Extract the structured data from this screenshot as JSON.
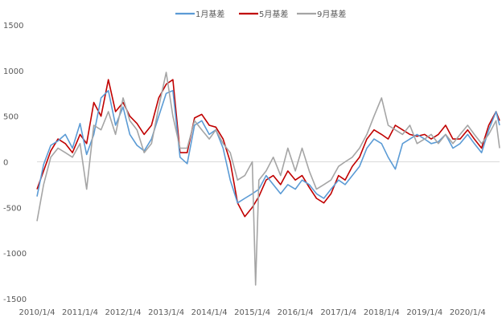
{
  "chart_data": {
    "type": "line",
    "title": "",
    "xlabel": "",
    "ylabel": "",
    "ylim": [
      -1500,
      1500
    ],
    "y_ticks": [
      1500,
      1000,
      500,
      0,
      -500,
      -1000,
      -1500
    ],
    "x_tick_labels": [
      "2010/1/4",
      "2011/1/4",
      "2012/1/4",
      "2013/1/4",
      "2014/1/4",
      "2015/1/4",
      "2016/1/4",
      "2017/1/4",
      "2018/1/4",
      "2019/1/4",
      "2020/1/4"
    ],
    "x_range": [
      "2010/1/4",
      "2020/10/1"
    ],
    "grid": false,
    "legend_position": "top",
    "series": [
      {
        "name": "1月基差",
        "color": "#5b9bd5",
        "points": [
          [
            "2010/1/4",
            -380
          ],
          [
            "2010/3/1",
            -30
          ],
          [
            "2010/5/1",
            180
          ],
          [
            "2010/7/1",
            230
          ],
          [
            "2010/9/1",
            300
          ],
          [
            "2010/11/1",
            150
          ],
          [
            "2011/1/4",
            420
          ],
          [
            "2011/3/1",
            80
          ],
          [
            "2011/5/1",
            300
          ],
          [
            "2011/7/1",
            700
          ],
          [
            "2011/9/1",
            780
          ],
          [
            "2011/11/1",
            400
          ],
          [
            "2012/1/4",
            600
          ],
          [
            "2012/3/1",
            300
          ],
          [
            "2012/5/1",
            180
          ],
          [
            "2012/7/1",
            120
          ],
          [
            "2012/9/1",
            250
          ],
          [
            "2012/11/1",
            500
          ],
          [
            "2013/1/4",
            750
          ],
          [
            "2013/3/1",
            780
          ],
          [
            "2013/5/1",
            50
          ],
          [
            "2013/7/1",
            -20
          ],
          [
            "2013/9/1",
            400
          ],
          [
            "2013/11/1",
            450
          ],
          [
            "2014/1/4",
            300
          ],
          [
            "2014/3/1",
            350
          ],
          [
            "2014/5/1",
            150
          ],
          [
            "2014/7/1",
            -200
          ],
          [
            "2014/9/1",
            -450
          ],
          [
            "2014/11/1",
            -400
          ],
          [
            "2015/1/4",
            -350
          ],
          [
            "2015/3/1",
            -300
          ],
          [
            "2015/5/1",
            -150
          ],
          [
            "2015/7/1",
            -250
          ],
          [
            "2015/9/1",
            -350
          ],
          [
            "2015/11/1",
            -250
          ],
          [
            "2016/1/4",
            -300
          ],
          [
            "2016/3/1",
            -200
          ],
          [
            "2016/5/1",
            -250
          ],
          [
            "2016/7/1",
            -350
          ],
          [
            "2016/9/1",
            -400
          ],
          [
            "2016/11/1",
            -300
          ],
          [
            "2017/1/4",
            -200
          ],
          [
            "2017/3/1",
            -250
          ],
          [
            "2017/5/1",
            -150
          ],
          [
            "2017/7/1",
            -50
          ],
          [
            "2017/9/1",
            150
          ],
          [
            "2017/11/1",
            250
          ],
          [
            "2018/1/4",
            200
          ],
          [
            "2018/3/1",
            50
          ],
          [
            "2018/5/1",
            -80
          ],
          [
            "2018/7/1",
            200
          ],
          [
            "2018/9/1",
            250
          ],
          [
            "2018/11/1",
            300
          ],
          [
            "2019/1/4",
            250
          ],
          [
            "2019/3/1",
            200
          ],
          [
            "2019/5/1",
            220
          ],
          [
            "2019/7/1",
            300
          ],
          [
            "2019/9/1",
            150
          ],
          [
            "2019/11/1",
            200
          ],
          [
            "2020/1/4",
            300
          ],
          [
            "2020/3/1",
            200
          ],
          [
            "2020/5/1",
            100
          ],
          [
            "2020/7/1",
            350
          ],
          [
            "2020/9/1",
            550
          ],
          [
            "2020/10/1",
            400
          ]
        ]
      },
      {
        "name": "5月基差",
        "color": "#c00000",
        "points": [
          [
            "2010/1/4",
            -300
          ],
          [
            "2010/3/1",
            -100
          ],
          [
            "2010/5/1",
            120
          ],
          [
            "2010/7/1",
            250
          ],
          [
            "2010/9/1",
            200
          ],
          [
            "2010/11/1",
            100
          ],
          [
            "2011/1/4",
            300
          ],
          [
            "2011/3/1",
            200
          ],
          [
            "2011/5/1",
            650
          ],
          [
            "2011/7/1",
            500
          ],
          [
            "2011/9/1",
            900
          ],
          [
            "2011/11/1",
            550
          ],
          [
            "2012/1/4",
            650
          ],
          [
            "2012/3/1",
            500
          ],
          [
            "2012/5/1",
            420
          ],
          [
            "2012/7/1",
            300
          ],
          [
            "2012/9/1",
            400
          ],
          [
            "2012/11/1",
            700
          ],
          [
            "2013/1/4",
            850
          ],
          [
            "2013/3/1",
            900
          ],
          [
            "2013/5/1",
            100
          ],
          [
            "2013/7/1",
            100
          ],
          [
            "2013/9/1",
            480
          ],
          [
            "2013/11/1",
            520
          ],
          [
            "2014/1/4",
            400
          ],
          [
            "2014/3/1",
            380
          ],
          [
            "2014/5/1",
            250
          ],
          [
            "2014/7/1",
            0
          ],
          [
            "2014/9/1",
            -450
          ],
          [
            "2014/11/1",
            -600
          ],
          [
            "2015/1/4",
            -500
          ],
          [
            "2015/3/1",
            -380
          ],
          [
            "2015/5/1",
            -200
          ],
          [
            "2015/7/1",
            -150
          ],
          [
            "2015/9/1",
            -250
          ],
          [
            "2015/11/1",
            -100
          ],
          [
            "2016/1/4",
            -200
          ],
          [
            "2016/3/1",
            -150
          ],
          [
            "2016/5/1",
            -280
          ],
          [
            "2016/7/1",
            -400
          ],
          [
            "2016/9/1",
            -450
          ],
          [
            "2016/11/1",
            -350
          ],
          [
            "2017/1/4",
            -150
          ],
          [
            "2017/3/1",
            -200
          ],
          [
            "2017/5/1",
            -50
          ],
          [
            "2017/7/1",
            50
          ],
          [
            "2017/9/1",
            250
          ],
          [
            "2017/11/1",
            350
          ],
          [
            "2018/1/4",
            300
          ],
          [
            "2018/3/1",
            250
          ],
          [
            "2018/5/1",
            400
          ],
          [
            "2018/7/1",
            350
          ],
          [
            "2018/9/1",
            300
          ],
          [
            "2018/11/1",
            280
          ],
          [
            "2019/1/4",
            300
          ],
          [
            "2019/3/1",
            250
          ],
          [
            "2019/5/1",
            300
          ],
          [
            "2019/7/1",
            400
          ],
          [
            "2019/9/1",
            250
          ],
          [
            "2019/11/1",
            250
          ],
          [
            "2020/1/4",
            350
          ],
          [
            "2020/3/1",
            250
          ],
          [
            "2020/5/1",
            150
          ],
          [
            "2020/7/1",
            400
          ],
          [
            "2020/9/1",
            550
          ],
          [
            "2020/10/1",
            450
          ]
        ]
      },
      {
        "name": "9月基差",
        "color": "#a5a5a5",
        "points": [
          [
            "2010/1/4",
            -650
          ],
          [
            "2010/3/1",
            -250
          ],
          [
            "2010/5/1",
            50
          ],
          [
            "2010/7/1",
            150
          ],
          [
            "2010/9/1",
            100
          ],
          [
            "2010/11/1",
            50
          ],
          [
            "2011/1/4",
            200
          ],
          [
            "2011/3/1",
            -300
          ],
          [
            "2011/5/1",
            400
          ],
          [
            "2011/7/1",
            350
          ],
          [
            "2011/9/1",
            550
          ],
          [
            "2011/11/1",
            300
          ],
          [
            "2012/1/4",
            700
          ],
          [
            "2012/3/1",
            450
          ],
          [
            "2012/5/1",
            350
          ],
          [
            "2012/7/1",
            100
          ],
          [
            "2012/9/1",
            200
          ],
          [
            "2012/11/1",
            600
          ],
          [
            "2013/1/4",
            980
          ],
          [
            "2013/3/1",
            500
          ],
          [
            "2013/5/1",
            150
          ],
          [
            "2013/7/1",
            150
          ],
          [
            "2013/9/1",
            450
          ],
          [
            "2013/11/1",
            350
          ],
          [
            "2014/1/4",
            250
          ],
          [
            "2014/3/1",
            350
          ],
          [
            "2014/5/1",
            200
          ],
          [
            "2014/7/1",
            100
          ],
          [
            "2014/9/1",
            -200
          ],
          [
            "2014/11/1",
            -150
          ],
          [
            "2015/1/4",
            0
          ],
          [
            "2015/2/1",
            -1350
          ],
          [
            "2015/3/1",
            -200
          ],
          [
            "2015/5/1",
            -100
          ],
          [
            "2015/7/1",
            50
          ],
          [
            "2015/9/1",
            -150
          ],
          [
            "2015/11/1",
            150
          ],
          [
            "2016/1/4",
            -100
          ],
          [
            "2016/3/1",
            150
          ],
          [
            "2016/5/1",
            -100
          ],
          [
            "2016/7/1",
            -300
          ],
          [
            "2016/9/1",
            -250
          ],
          [
            "2016/11/1",
            -200
          ],
          [
            "2017/1/4",
            -50
          ],
          [
            "2017/3/1",
            0
          ],
          [
            "2017/5/1",
            50
          ],
          [
            "2017/7/1",
            150
          ],
          [
            "2017/9/1",
            300
          ],
          [
            "2017/11/1",
            500
          ],
          [
            "2018/1/4",
            700
          ],
          [
            "2018/3/1",
            400
          ],
          [
            "2018/5/1",
            350
          ],
          [
            "2018/7/1",
            300
          ],
          [
            "2018/9/1",
            400
          ],
          [
            "2018/11/1",
            200
          ],
          [
            "2019/1/4",
            250
          ],
          [
            "2019/3/1",
            300
          ],
          [
            "2019/5/1",
            200
          ],
          [
            "2019/7/1",
            300
          ],
          [
            "2019/9/1",
            200
          ],
          [
            "2019/11/1",
            300
          ],
          [
            "2020/1/4",
            400
          ],
          [
            "2020/3/1",
            300
          ],
          [
            "2020/5/1",
            200
          ],
          [
            "2020/7/1",
            300
          ],
          [
            "2020/9/1",
            450
          ],
          [
            "2020/10/1",
            150
          ]
        ]
      }
    ]
  }
}
